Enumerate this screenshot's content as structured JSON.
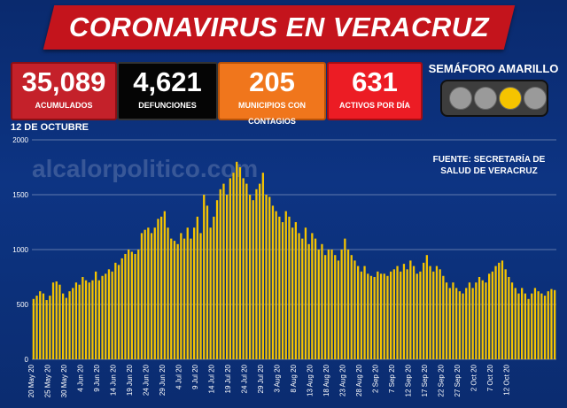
{
  "title": "CORONAVIRUS EN VERACRUZ",
  "stats": [
    {
      "value": "35,089",
      "label": "ACUMULADOS"
    },
    {
      "value": "4,621",
      "label": "DEFUNCIONES"
    },
    {
      "value": "205",
      "label": "MUNICIPIOS CON CONTAGIOS"
    },
    {
      "value": "631",
      "label": "ACTIVOS POR DÍA"
    }
  ],
  "semaforo": {
    "label": "SEMÁFORO AMARILLO",
    "active": "yellow",
    "colors": {
      "active": "#f5c400",
      "inactive": "#9a9a9a"
    }
  },
  "date_label": "12 DE OCTUBRE",
  "source_line1": "FUENTE: SECRETARÍA DE",
  "source_line2": "SALUD DE VERACRUZ",
  "watermark": "alcalorpolitico.com",
  "chart_data": {
    "type": "bar",
    "color": "#f5c400",
    "ylim": [
      0,
      2000
    ],
    "yticks": [
      0,
      500,
      1000,
      1500,
      2000
    ],
    "xtick_labels": [
      "20 May 20",
      "25 May 20",
      "30 May 20",
      "4 Jun 20",
      "9 Jun 20",
      "14 Jun 20",
      "19 Jun 20",
      "24 Jun 20",
      "29 Jun 20",
      "4 Jul 20",
      "9 Jul 20",
      "14 Jul 20",
      "19 Jul 20",
      "24 Jul 20",
      "29 Jul 20",
      "3 Aug 20",
      "8 Aug 20",
      "13 Aug 20",
      "18 Aug 20",
      "23 Aug 20",
      "28 Aug 20",
      "2 Sep 20",
      "7 Sep 20",
      "12 Sep 20",
      "17 Sep 20",
      "22 Sep 20",
      "27 Sep 20",
      "2 Oct 20",
      "7 Oct 20",
      "12 Oct 20"
    ],
    "values": [
      550,
      580,
      620,
      600,
      540,
      580,
      700,
      710,
      680,
      600,
      560,
      620,
      650,
      700,
      680,
      750,
      720,
      700,
      720,
      800,
      720,
      760,
      780,
      820,
      800,
      880,
      860,
      920,
      960,
      1000,
      980,
      960,
      1000,
      1150,
      1180,
      1200,
      1150,
      1200,
      1280,
      1300,
      1350,
      1200,
      1100,
      1080,
      1050,
      1150,
      1100,
      1200,
      1100,
      1200,
      1300,
      1150,
      1500,
      1400,
      1200,
      1300,
      1450,
      1550,
      1600,
      1500,
      1650,
      1700,
      1800,
      1750,
      1650,
      1600,
      1500,
      1450,
      1550,
      1600,
      1700,
      1500,
      1480,
      1400,
      1350,
      1300,
      1250,
      1350,
      1300,
      1200,
      1250,
      1150,
      1100,
      1200,
      1050,
      1150,
      1100,
      1000,
      1050,
      950,
      1000,
      1000,
      950,
      900,
      1000,
      1100,
      1000,
      950,
      900,
      850,
      800,
      850,
      780,
      760,
      750,
      800,
      780,
      780,
      760,
      800,
      820,
      850,
      800,
      870,
      820,
      900,
      850,
      780,
      800,
      880,
      950,
      850,
      800,
      850,
      820,
      760,
      700,
      650,
      700,
      650,
      620,
      600,
      650,
      700,
      650,
      700,
      750,
      720,
      700,
      780,
      800,
      850,
      880,
      900,
      820,
      750,
      700,
      650,
      600,
      650,
      600,
      550,
      600,
      650,
      620,
      600,
      580,
      620,
      640,
      631
    ]
  }
}
